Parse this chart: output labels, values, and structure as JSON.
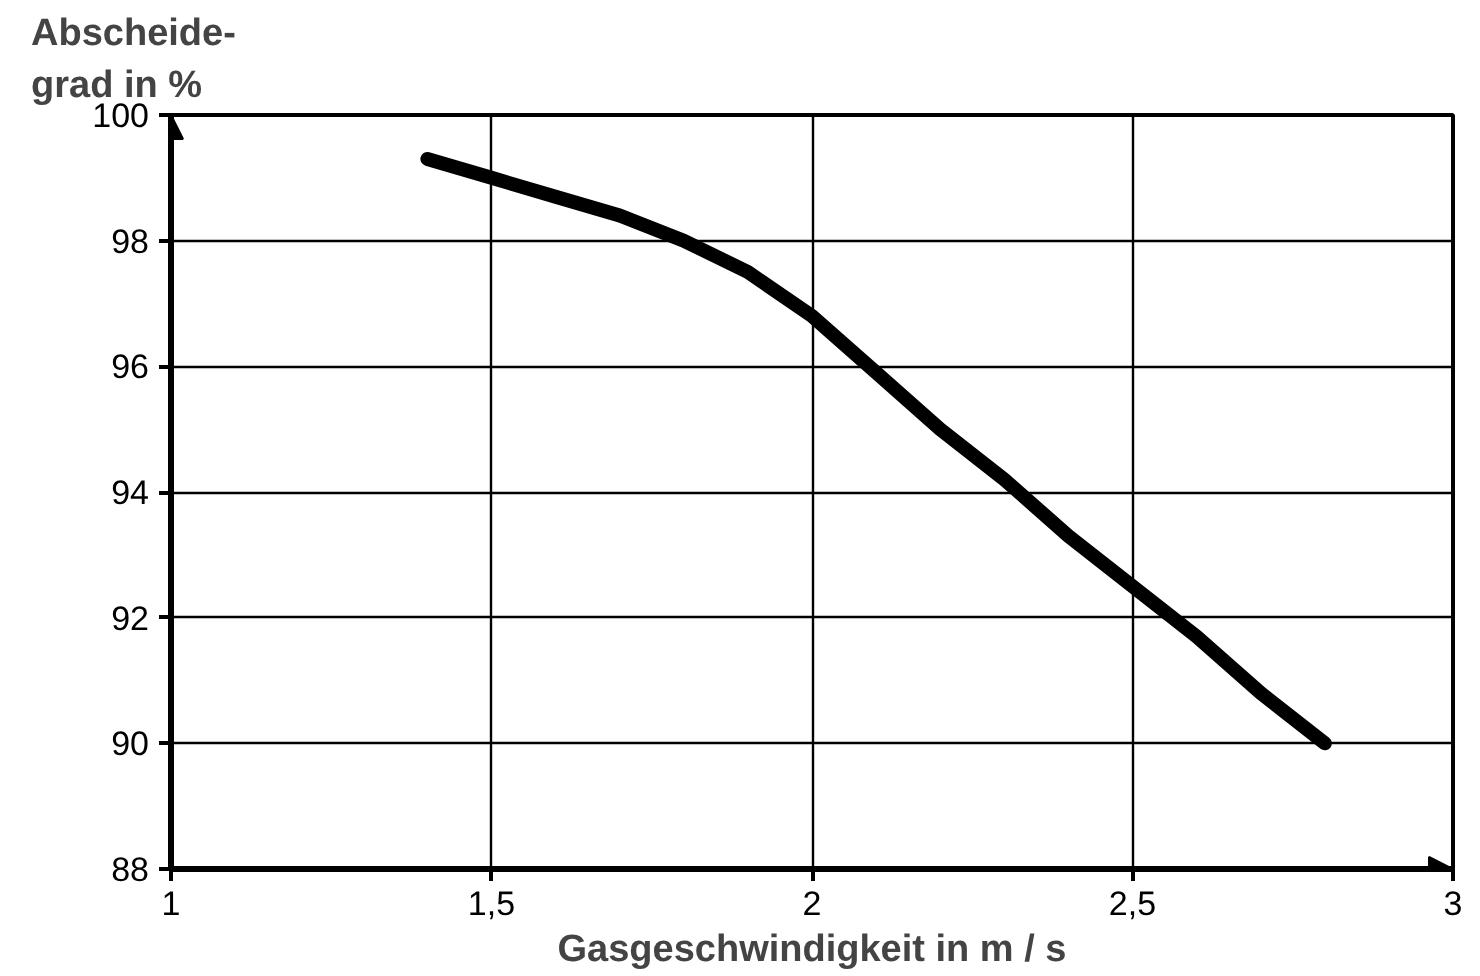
{
  "chart_data": {
    "type": "line",
    "ylabel": "Abscheide-\ngrad in %",
    "xlabel": "Gasgeschwindigkeit in m / s",
    "x": [
      1.4,
      1.5,
      1.6,
      1.7,
      1.8,
      1.9,
      2.0,
      2.1,
      2.2,
      2.3,
      2.4,
      2.5,
      2.6,
      2.7,
      2.8
    ],
    "series": [
      {
        "color": "#000000",
        "values": [
          99.3,
          99.0,
          98.7,
          98.4,
          98.0,
          97.5,
          96.8,
          95.9,
          95.0,
          94.2,
          93.3,
          92.5,
          91.7,
          90.8,
          90.0
        ]
      }
    ],
    "xlim": [
      1,
      3
    ],
    "ylim": [
      88,
      100
    ],
    "xticks": [
      1,
      {
        "value": 1.5,
        "label": "1,5"
      },
      2,
      {
        "value": 2.5,
        "label": "2,5"
      },
      3
    ],
    "yticks": [
      88,
      90,
      92,
      94,
      96,
      98,
      100
    ],
    "grid": true,
    "marker": "none",
    "line_style": "solid"
  }
}
